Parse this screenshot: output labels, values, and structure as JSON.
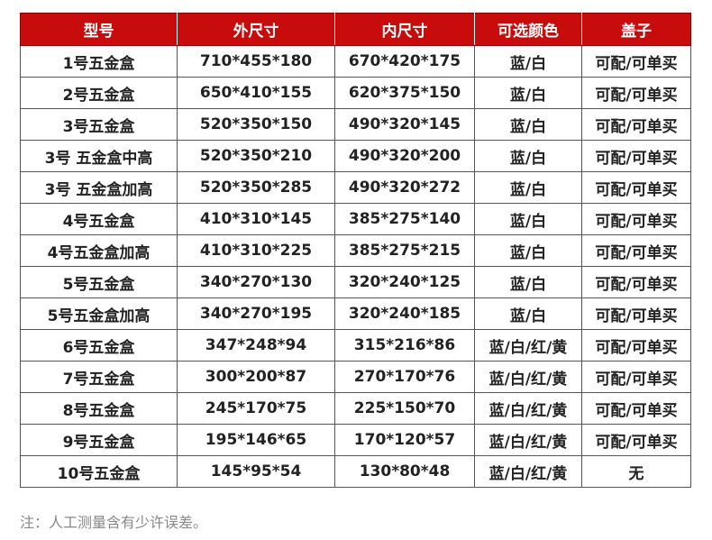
{
  "header_color": "#c80b0b",
  "headers": [
    "型号",
    "外尺寸",
    "内尺寸",
    "可选颜色",
    "盖子"
  ],
  "rows": [
    [
      "1号五金盒",
      "710*455*180",
      "670*420*175",
      "蓝/白",
      "可配/可单买"
    ],
    [
      "2号五金盒",
      "650*410*155",
      "620*375*150",
      "蓝/白",
      "可配/可单买"
    ],
    [
      "3号五金盒",
      "520*350*150",
      "490*320*145",
      "蓝/白",
      "可配/可单买"
    ],
    [
      "3号 五金盒中高",
      "520*350*210",
      "490*320*200",
      "蓝/白",
      "可配/可单买"
    ],
    [
      "3号 五金盒加高",
      "520*350*285",
      "490*320*272",
      "蓝/白",
      "可配/可单买"
    ],
    [
      "4号五金盒",
      "410*310*145",
      "385*275*140",
      "蓝/白",
      "可配/可单买"
    ],
    [
      "4号五金盒加高",
      "410*310*225",
      "385*275*215",
      "蓝/白",
      "可配/可单买"
    ],
    [
      "5号五金盒",
      "340*270*130",
      "320*240*125",
      "蓝/白",
      "可配/可单买"
    ],
    [
      "5号五金盒加高",
      "340*270*195",
      "320*240*185",
      "蓝/白",
      "可配/可单买"
    ],
    [
      "6号五金盒",
      "347*248*94",
      "315*216*86",
      "蓝/白/红/黄",
      "可配/可单买"
    ],
    [
      "7号五金盒",
      "300*200*87",
      "270*170*76",
      "蓝/白/红/黄",
      "可配/可单买"
    ],
    [
      "8号五金盒",
      "245*170*75",
      "225*150*70",
      "蓝/白/红/黄",
      "可配/可单买"
    ],
    [
      "9号五金盒",
      "195*146*65",
      "170*120*57",
      "蓝/白/红/黄",
      "可配/可单买"
    ],
    [
      "10号五金盒",
      "145*95*54",
      "130*80*48",
      "蓝/白/红/黄",
      "无"
    ]
  ],
  "note": "注：人工测量含有少许误差。"
}
